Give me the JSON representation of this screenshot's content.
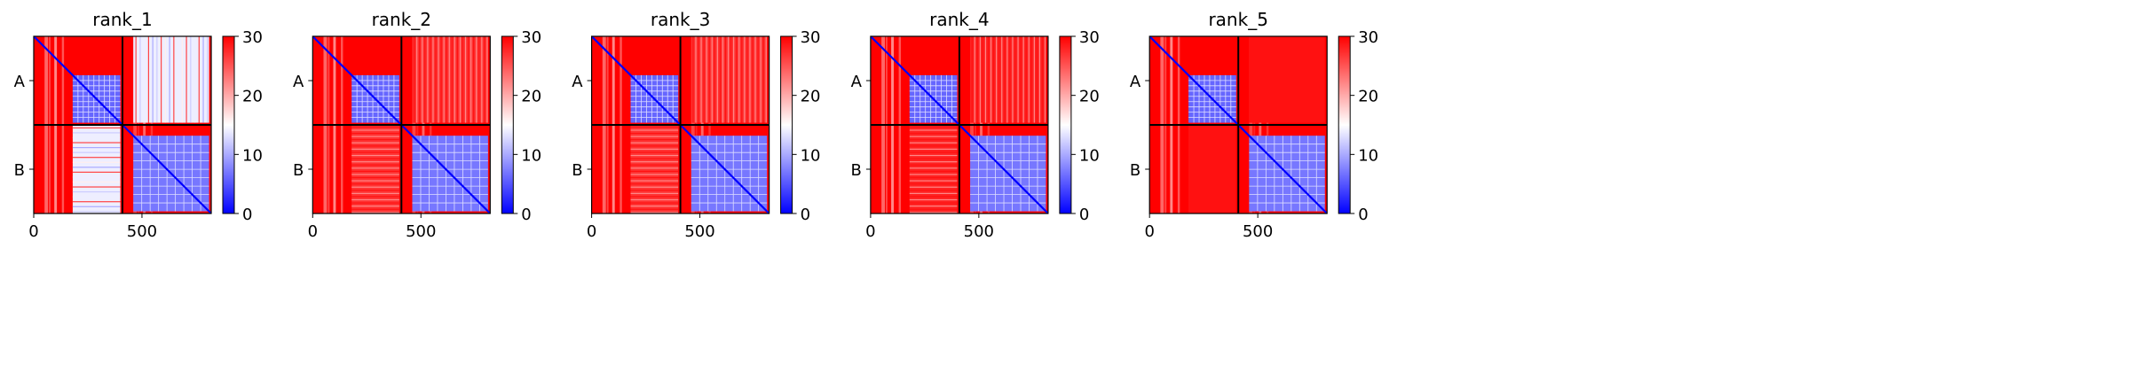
{
  "chart_data": {
    "type": "heatmap",
    "colormap": {
      "name": "bwr",
      "stops": [
        "#0000ff",
        "#ffffff",
        "#ff0000"
      ],
      "vmin": 0,
      "vmax": 30,
      "ticks": [
        0,
        10,
        20,
        30
      ]
    },
    "chains": [
      "A",
      "B"
    ],
    "chain_boundary": 410,
    "total_length": 820,
    "x_ticks": [
      0,
      500
    ],
    "domain_blocks": [
      {
        "start": 180,
        "end": 400
      },
      {
        "start": 460,
        "end": 810
      }
    ],
    "panels": [
      {
        "title": "rank_1",
        "interchain_level": 14,
        "interchain_mode": "blocky"
      },
      {
        "title": "rank_2",
        "interchain_level": 27,
        "interchain_mode": "striped"
      },
      {
        "title": "rank_3",
        "interchain_level": 27,
        "interchain_mode": "striped"
      },
      {
        "title": "rank_4",
        "interchain_level": 28,
        "interchain_mode": "striped"
      },
      {
        "title": "rank_5",
        "interchain_level": 29,
        "interchain_mode": "uniform"
      }
    ]
  }
}
